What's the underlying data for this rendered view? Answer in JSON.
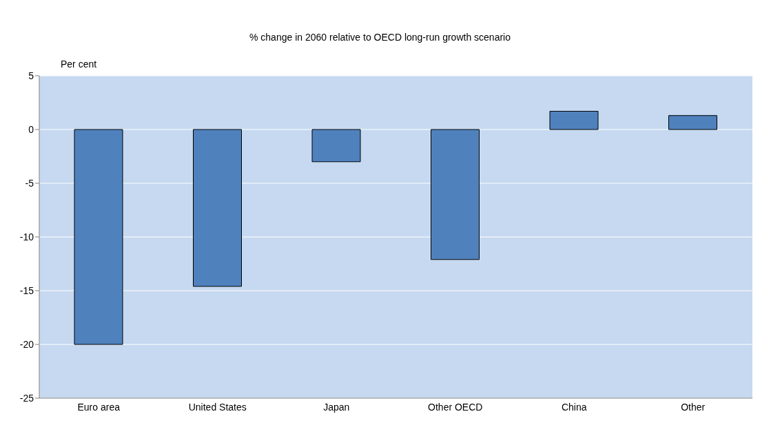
{
  "chart_data": {
    "type": "bar",
    "title": "% change in 2060 relative to OECD long-run growth scenario",
    "ylabel": "Per cent",
    "categories": [
      "Euro area",
      "United States",
      "Japan",
      "Other OECD",
      "China",
      "Other"
    ],
    "values": [
      -20,
      -14.6,
      -3,
      -12.1,
      1.7,
      1.3
    ],
    "color": "#4f81bd",
    "ylim": [
      -25,
      5
    ],
    "yticks": [
      -25,
      -20,
      -15,
      -10,
      -5,
      0,
      5
    ],
    "grid": "y",
    "legend": false
  }
}
